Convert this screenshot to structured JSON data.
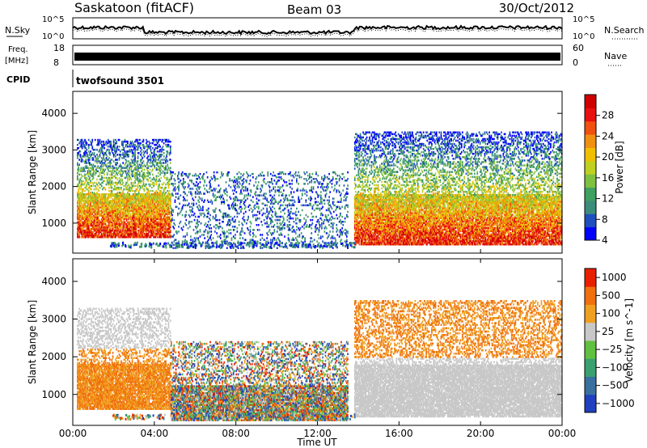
{
  "header": {
    "station": "Saskatoon (fitACF)",
    "beam": "Beam 03",
    "date": "30/Oct/2012"
  },
  "status_panels": {
    "nsky_label": "N.Sky",
    "nsearch_label": "N.Search",
    "freq_label_line1": "Freq.",
    "freq_label_line2": "[MHz]",
    "nave_label": "Nave",
    "cpid_label": "CPID",
    "noise_ticks_left": [
      "10^5",
      "10^0"
    ],
    "noise_ticks_right": [
      "10^5",
      "10^0"
    ],
    "freq_ticks": [
      "18",
      "8"
    ],
    "nave_ticks": [
      "60",
      "0"
    ],
    "cpid_value": "twofsound 3501"
  },
  "chart_data": [
    {
      "type": "heatmap",
      "name": "power",
      "ylabel": "Slant Range [km]",
      "yticks": [
        "4000",
        "3000",
        "2000",
        "1000"
      ],
      "ylim": [
        180,
        4600
      ],
      "xlim": [
        0,
        24
      ],
      "colorbar_title": "Power [dB]",
      "colorbar_ticks": [
        "28",
        "24",
        "20",
        "16",
        "12",
        "8",
        "4"
      ],
      "colorbar_range": [
        0,
        32
      ],
      "colorbar_colors": [
        "#0000ff",
        "#1f4fbe",
        "#3b8c7a",
        "#3fa060",
        "#7fc040",
        "#c0d020",
        "#f0c000",
        "#f09010",
        "#f05010",
        "#e81010",
        "#d00000"
      ],
      "echo_regions": [
        {
          "t0": 0.2,
          "t1": 4.8,
          "r0": 600,
          "r1": 3300,
          "level": "high"
        },
        {
          "t0": 4.8,
          "t1": 13.5,
          "r0": 300,
          "r1": 2400,
          "level": "low"
        },
        {
          "t0": 13.8,
          "t1": 24.0,
          "r0": 400,
          "r1": 3500,
          "level": "high"
        }
      ]
    },
    {
      "type": "heatmap",
      "name": "velocity",
      "ylabel": "Slant Range [km]",
      "yticks": [
        "4000",
        "3000",
        "2000",
        "1000"
      ],
      "ylim": [
        180,
        4600
      ],
      "xlim": [
        0,
        24
      ],
      "colorbar_title": "Velocity [m s^-1]",
      "colorbar_ticks": [
        "1000",
        "500",
        "100",
        "25",
        "−25",
        "−100",
        "−500",
        "−1000"
      ],
      "colorbar_colors": [
        "#2040c0",
        "#3a70a0",
        "#3aa070",
        "#60c040",
        "#c8c8c8",
        "#f0a020",
        "#f07010",
        "#e82000"
      ],
      "echo_regions": [
        {
          "t0": 0.2,
          "t1": 4.8,
          "r0": 600,
          "r1": 3300,
          "level": "toward"
        },
        {
          "t0": 4.8,
          "t1": 13.5,
          "r0": 300,
          "r1": 2400,
          "level": "mixed"
        },
        {
          "t0": 13.8,
          "t1": 24.0,
          "r0": 400,
          "r1": 3500,
          "level": "ground"
        }
      ]
    }
  ],
  "time_axis": {
    "ticks": [
      "00:00",
      "04:00",
      "08:00",
      "12:00",
      "16:00",
      "20:00",
      "00:00"
    ],
    "label": "Time UT"
  }
}
